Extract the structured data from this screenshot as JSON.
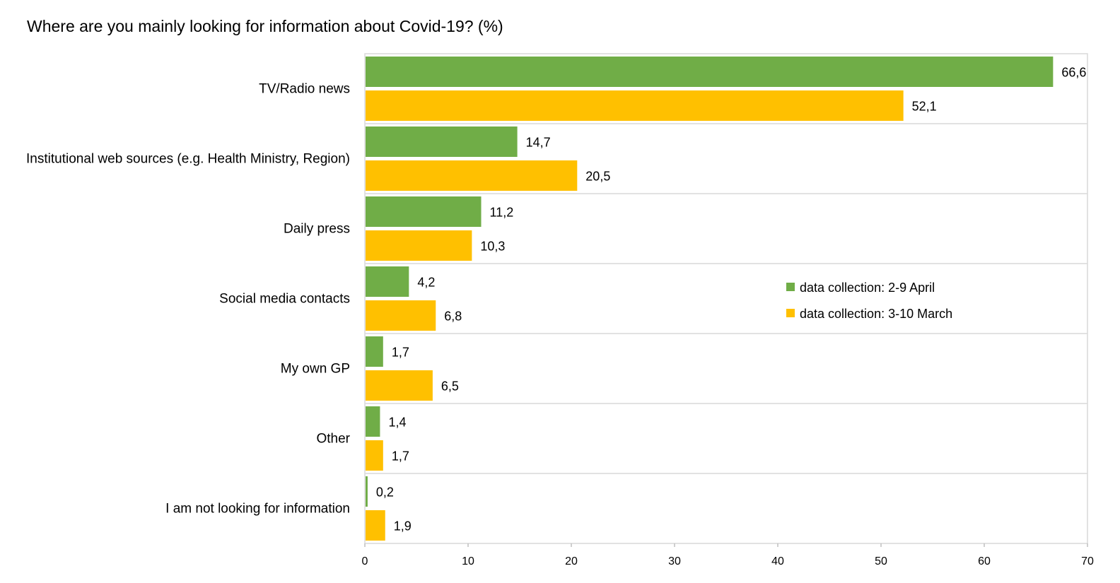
{
  "chart_data": {
    "type": "bar",
    "orientation": "horizontal",
    "title": "Where are you mainly looking for information about Covid-19? (%)",
    "categories": [
      "TV/Radio news",
      "Institutional web sources (e.g. Health Ministry, Region)",
      "Daily press",
      "Social media contacts",
      "My own GP",
      "Other",
      "I am not looking for information"
    ],
    "series": [
      {
        "name": "data collection: 2-9 April",
        "color": "#70AD47",
        "values": [
          66.6,
          14.7,
          11.2,
          4.2,
          1.7,
          1.4,
          0.2
        ],
        "labels": [
          "66,6",
          "14,7",
          "11,2",
          "4,2",
          "1,7",
          "1,4",
          "0,2"
        ]
      },
      {
        "name": "data collection: 3-10 March",
        "color": "#FFC000",
        "values": [
          52.1,
          20.5,
          10.3,
          6.8,
          6.5,
          1.7,
          1.9
        ],
        "labels": [
          "52,1",
          "20,5",
          "10,3",
          "6,8",
          "6,5",
          "1,7",
          "1,9"
        ]
      }
    ],
    "xlim": [
      0,
      70
    ],
    "xticks": [
      0,
      10,
      20,
      30,
      40,
      50,
      60,
      70
    ],
    "grid": "horizontal separators between categories",
    "legend_position": "right, middle"
  }
}
